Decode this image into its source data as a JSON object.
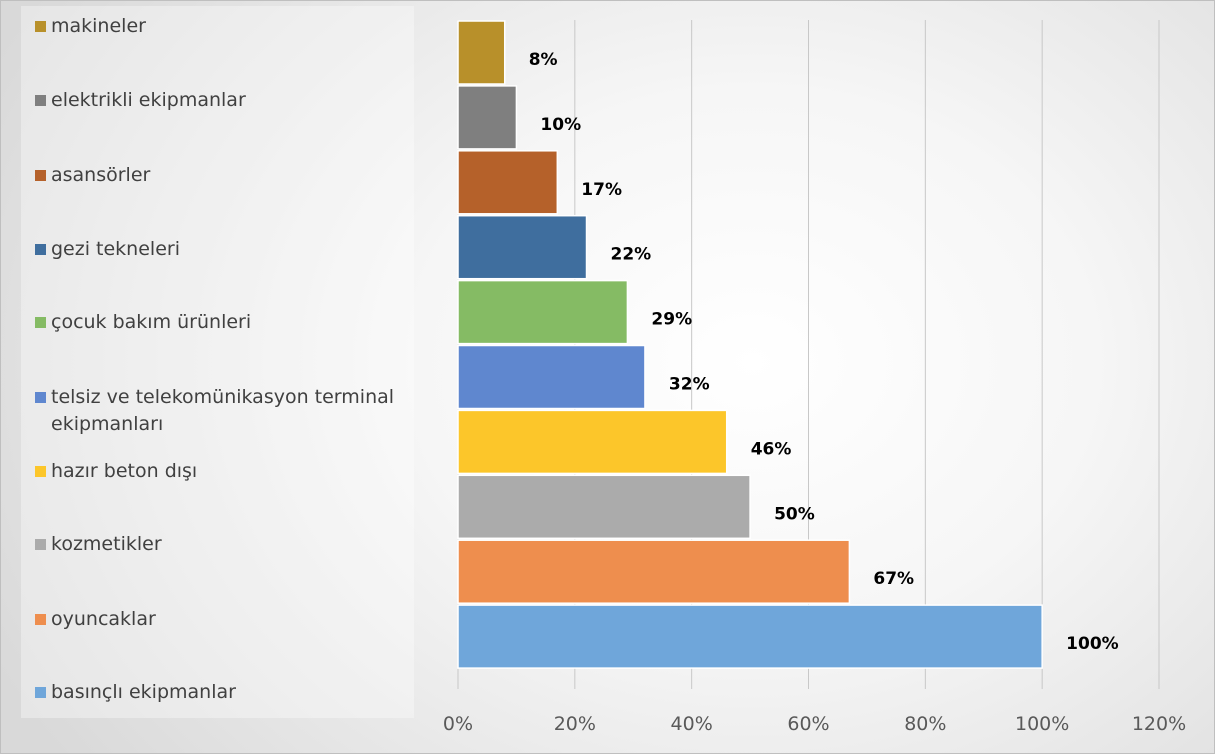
{
  "chart_data": {
    "type": "bar",
    "orientation": "horizontal",
    "stacked_layout": "bars stacked vertically, largest at bottom",
    "categories": [
      "makineler",
      "elektrikli ekipmanlar",
      "asansörler",
      "gezi tekneleri",
      "çocuk bakım ürünleri",
      "telsiz ve telekomünikasyon terminal ekipmanları",
      "hazır beton dışı",
      "kozmetikler",
      "oyuncaklar",
      "basınçlı ekipmanlar"
    ],
    "values": [
      8,
      10,
      17,
      22,
      29,
      32,
      46,
      50,
      67,
      100
    ],
    "data_labels": [
      "8%",
      "10%",
      "17%",
      "22%",
      "29%",
      "32%",
      "46%",
      "50%",
      "67%",
      "100%"
    ],
    "colors": [
      "#B8902A",
      "#7F7F7F",
      "#B5612A",
      "#3F6E9E",
      "#85BB64",
      "#5F87CF",
      "#FCC62A",
      "#ABABAB",
      "#EE8E4E",
      "#6FA6DA"
    ],
    "xlim": [
      0,
      120
    ],
    "x_ticks": [
      "0%",
      "20%",
      "40%",
      "60%",
      "80%",
      "100%",
      "120%"
    ],
    "x_tick_values": [
      0,
      20,
      40,
      60,
      80,
      100,
      120
    ],
    "grid": "vertical",
    "legend_position": "left",
    "title": "",
    "xlabel": "",
    "ylabel": ""
  }
}
